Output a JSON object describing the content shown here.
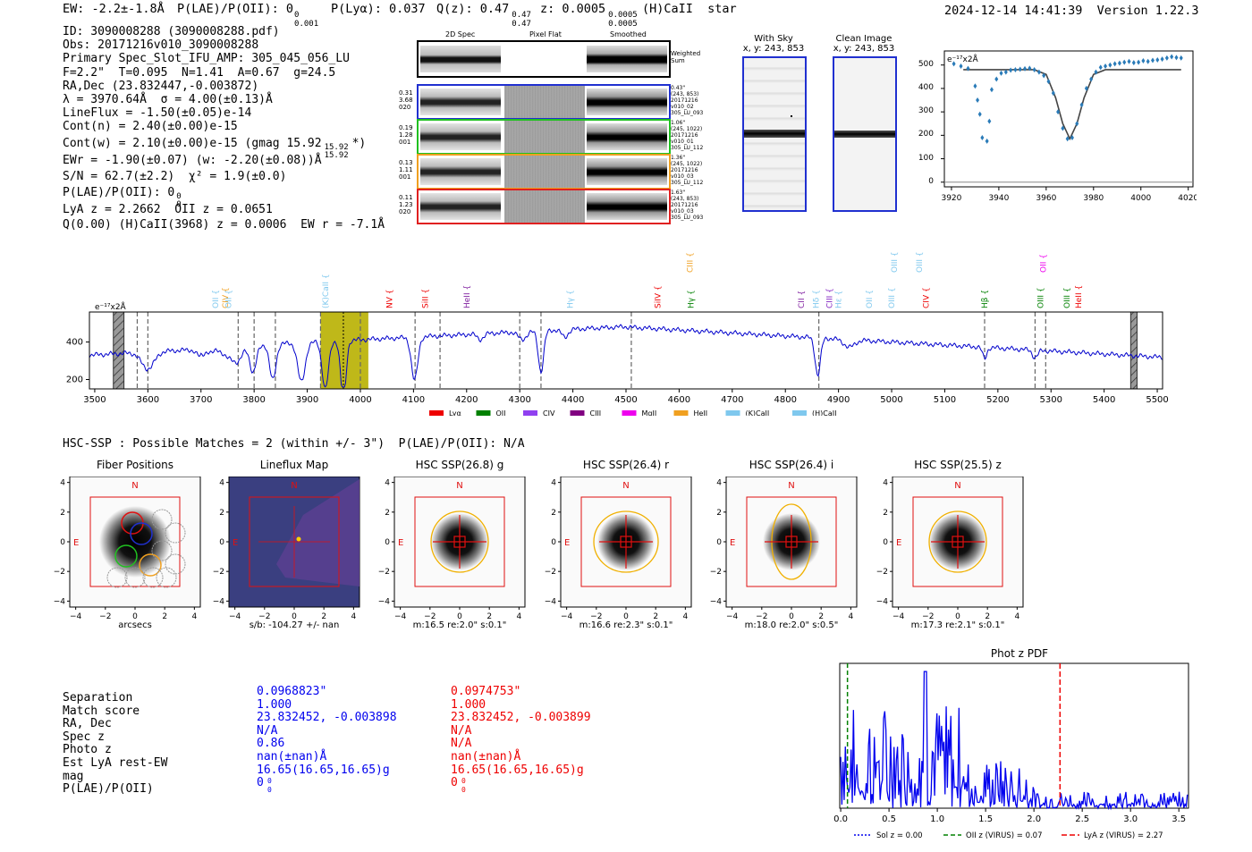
{
  "header": {
    "ew": "EW: -2.2±-1.8Å",
    "plae_label": "P(LAE)/P(OII): 0",
    "plae_sup": "0",
    "plae_sub": "0.001",
    "plya": "P(Lyα): 0.037",
    "qz_label": "Q(z): 0.47",
    "qz_sup": "0.47",
    "qz_sub": "0.47",
    "z_label": "z: 0.0005",
    "z_sup": "0.0005",
    "z_sub": "0.0005",
    "class": "(H)CaII  star",
    "timestamp": "2024-12-14 14:41:39  Version 1.22.3"
  },
  "info": {
    "l1": "ID: 3090008288 (3090008288.pdf)",
    "l2": "Obs: 20171216v010_3090008288",
    "l3": "Primary Spec_Slot_IFU_AMP: 305_045_056_LU",
    "l4": "F=2.2\"  T=0.095  N=1.41  A=0.67  g=24.5",
    "l5": "RA,Dec (23.832447,-0.003872)",
    "l6": "λ = 3970.64Å  σ = 4.00(±0.13)Å",
    "l7": "LineFlux = -1.50(±0.05)e-14",
    "l8": "Cont(n) = 2.40(±0.00)e-15",
    "l9": "Cont(w) = 2.10(±0.00)e-15 (gmag 15.92",
    "l9_sup": "15.92",
    "l9_sub": "15.92",
    "l9_end": "*)",
    "l10": "EWr = -1.90(±0.07) (w: -2.20(±0.08))Å",
    "l11": "S/N = 62.7(±2.2)  χ² = 1.9(±0.0)",
    "l12": "P(LAE)/P(OII): 0",
    "l12_sup": "0",
    "l12_sub": "0",
    "l13": "LyA z = 2.2662  OII z = 0.0651",
    "l14": "Q(0.00) (H)CaII(3968) z = 0.0006  EW r = -7.1Å"
  },
  "cutouts": {
    "col_2d": "2D Spec",
    "col_flat": "Pixel Flat",
    "col_smooth": "Smoothed",
    "weighted": "Weighted Sum",
    "rows": [
      {
        "left": [
          "0.31",
          "3.68",
          "020"
        ],
        "right": [
          "0.43\"",
          "(243, 853)",
          "20171216",
          "v010_02",
          "305_LU_093"
        ],
        "color": "#2030d0"
      },
      {
        "left": [
          "0.19",
          "1.28",
          "001"
        ],
        "right": [
          "1.06\"",
          "(245, 1022)",
          "20171216",
          "v010_01",
          "305_LU_112"
        ],
        "color": "#20c020"
      },
      {
        "left": [
          "0.13",
          "1.11",
          "001"
        ],
        "right": [
          "1.36\"",
          "(245, 1022)",
          "20171216",
          "v010_03",
          "305_LU_112"
        ],
        "color": "#f0a020"
      },
      {
        "left": [
          "0.11",
          "1.23",
          "020"
        ],
        "right": [
          "1.63\"",
          "(243, 853)",
          "20171216",
          "v010_03",
          "305_LU_093"
        ],
        "color": "#e02020"
      }
    ]
  },
  "sky": {
    "with_sky_title": "With Sky",
    "with_sky_coords": "x, y: 243, 853",
    "clean_title": "Clean Image",
    "clean_coords": "x, y: 243, 853"
  },
  "zoom_chart": {
    "type": "line",
    "unit": "e⁻¹⁷x2Å",
    "xticks": [
      3920,
      3940,
      3960,
      3980,
      4000,
      4020
    ],
    "yticks": [
      0,
      100,
      200,
      300,
      400,
      500
    ],
    "xlim": [
      3917,
      4022
    ],
    "ylim": [
      -20,
      560
    ],
    "points": [
      [
        3921,
        505
      ],
      [
        3924,
        495
      ],
      [
        3927,
        485
      ],
      [
        3930,
        410
      ],
      [
        3931,
        350
      ],
      [
        3932,
        290
      ],
      [
        3933,
        190
      ],
      [
        3935,
        175
      ],
      [
        3936,
        260
      ],
      [
        3937,
        395
      ],
      [
        3939,
        440
      ],
      [
        3941,
        465
      ],
      [
        3943,
        470
      ],
      [
        3945,
        478
      ],
      [
        3947,
        480
      ],
      [
        3949,
        482
      ],
      [
        3951,
        484
      ],
      [
        3953,
        486
      ],
      [
        3955,
        480
      ],
      [
        3957,
        470
      ],
      [
        3959,
        455
      ],
      [
        3961,
        430
      ],
      [
        3963,
        380
      ],
      [
        3965,
        300
      ],
      [
        3967,
        230
      ],
      [
        3969,
        185
      ],
      [
        3971,
        190
      ],
      [
        3973,
        250
      ],
      [
        3975,
        330
      ],
      [
        3977,
        400
      ],
      [
        3979,
        440
      ],
      [
        3981,
        470
      ],
      [
        3983,
        490
      ],
      [
        3985,
        495
      ],
      [
        3987,
        500
      ],
      [
        3989,
        505
      ],
      [
        3991,
        508
      ],
      [
        3993,
        512
      ],
      [
        3995,
        515
      ],
      [
        3997,
        510
      ],
      [
        3999,
        512
      ],
      [
        4001,
        518
      ],
      [
        4003,
        515
      ],
      [
        4005,
        520
      ],
      [
        4007,
        522
      ],
      [
        4009,
        525
      ],
      [
        4011,
        530
      ],
      [
        4013,
        535
      ],
      [
        4015,
        532
      ],
      [
        4017,
        530
      ]
    ],
    "fit": [
      [
        3925,
        480
      ],
      [
        3955,
        480
      ],
      [
        3960,
        460
      ],
      [
        3964,
        360
      ],
      [
        3967,
        250
      ],
      [
        3970,
        185
      ],
      [
        3973,
        250
      ],
      [
        3976,
        360
      ],
      [
        3980,
        460
      ],
      [
        3985,
        480
      ],
      [
        4017,
        480
      ]
    ]
  },
  "full_spec": {
    "type": "line",
    "unit": "e⁻¹⁷x2Å",
    "xticks": [
      3500,
      3600,
      3700,
      3800,
      3900,
      4000,
      4100,
      4200,
      4300,
      4400,
      4500,
      4600,
      4700,
      4800,
      4900,
      5000,
      5100,
      5200,
      5300,
      5400,
      5500
    ],
    "yticks": [
      200,
      400
    ],
    "xlim": [
      3490,
      5510
    ],
    "ylim": [
      150,
      560
    ],
    "dashes": [
      3580,
      3600,
      3770,
      3800,
      3840,
      3925,
      4000,
      4103,
      4150,
      4300,
      4340,
      4510,
      4863,
      5175,
      5270,
      5290
    ],
    "lines": [
      {
        "label": "OII",
        "x": 3727,
        "color": "#7fc8ee"
      },
      {
        "label": "CIV",
        "x": 3746,
        "color": "#f0a020"
      },
      {
        "label": "OII",
        "x": 3752,
        "color": "#7fc8ee"
      },
      {
        "label": "(K)CaII",
        "x": 3934,
        "color": "#7fc8ee"
      },
      {
        "label": "NV",
        "x": 4055,
        "color": "#ee0000"
      },
      {
        "label": "SiII",
        "x": 4122,
        "color": "#ee0000"
      },
      {
        "label": "HeII",
        "x": 4200,
        "color": "#8020a0"
      },
      {
        "label": "Hγ",
        "x": 4395,
        "color": "#7fc8ee"
      },
      {
        "label": "SiIV",
        "x": 4560,
        "color": "#ee0000"
      },
      {
        "label": "Hγ",
        "x": 4622,
        "color": "#008000"
      },
      {
        "label": "CIII",
        "x": 4620,
        "color": "#f0a020",
        "high": true
      },
      {
        "label": "CII",
        "x": 4830,
        "color": "#8020a0"
      },
      {
        "label": "Hδ",
        "x": 4858,
        "color": "#7fc8ee"
      },
      {
        "label": "CIII",
        "x": 4883,
        "color": "#8020c0"
      },
      {
        "label": "Hε",
        "x": 4900,
        "color": "#7fc8ee"
      },
      {
        "label": "OII",
        "x": 4958,
        "color": "#7fc8ee"
      },
      {
        "label": "OIII",
        "x": 5000,
        "color": "#7fc8ee"
      },
      {
        "label": "OIII",
        "x": 5005,
        "color": "#7fc8ee",
        "high": true
      },
      {
        "label": "OIII",
        "x": 5052,
        "color": "#7fc8ee",
        "high": true
      },
      {
        "label": "CIV",
        "x": 5065,
        "color": "#ee0000"
      },
      {
        "label": "Hβ",
        "x": 5175,
        "color": "#008000"
      },
      {
        "label": "OIII",
        "x": 5280,
        "color": "#008000"
      },
      {
        "label": "OII",
        "x": 5285,
        "color": "#ee00ee",
        "high": true
      },
      {
        "label": "OIII",
        "x": 5330,
        "color": "#008000"
      },
      {
        "label": "HeII",
        "x": 5352,
        "color": "#ee0000"
      }
    ],
    "legend": [
      {
        "label": "Lyα",
        "color": "#ee0000"
      },
      {
        "label": "OII",
        "color": "#008000"
      },
      {
        "label": "CIV",
        "color": "#9040f0"
      },
      {
        "label": "CIII",
        "color": "#800080"
      },
      {
        "label": "MgII",
        "color": "#ee00ee"
      },
      {
        "label": "HeII",
        "color": "#f0a020"
      },
      {
        "label": "(K)CaII",
        "color": "#7fc8ee"
      },
      {
        "label": "(H)CaII",
        "color": "#7fc8ee"
      }
    ]
  },
  "hsc": {
    "heading": "HSC-SSP : Possible Matches = 2 (within +/- 3\")  P(LAE)/P(OII): N/A",
    "panels": [
      {
        "title": "Fiber Positions",
        "caption": "arcsecs"
      },
      {
        "title": "Lineflux Map",
        "caption": "s/b: -104.27 +/- nan"
      },
      {
        "title": "HSC SSP(26.8) g",
        "caption": "m:16.5  re:2.0\"  s:0.1\""
      },
      {
        "title": "HSC SSP(26.4) r",
        "caption": "m:16.6  re:2.3\"  s:0.1\""
      },
      {
        "title": "HSC SSP(26.4) i",
        "caption": "m:18.0  re:2.0\"  s:0.5\""
      },
      {
        "title": "HSC SSP(25.5) z",
        "caption": "m:17.3  re:2.1\"  s:0.1\""
      }
    ],
    "ticks": [
      "4",
      "2",
      "0",
      "−2",
      "−4"
    ],
    "xticks": [
      "−4",
      "−2",
      "0",
      "2",
      "4"
    ],
    "north": "N",
    "east": "E"
  },
  "matches": {
    "labels": [
      "Separation",
      "Match score",
      "RA, Dec",
      "Spec z",
      "Photo z",
      "Est LyA rest-EW",
      "mag",
      "P(LAE)/P(OII)"
    ],
    "m1": [
      "0.0968823\"",
      "1.000",
      "23.832452, -0.003898",
      "N/A",
      "0.86",
      "nan(±nan)Å",
      "16.65(16.65,16.65)g",
      "0"
    ],
    "m2": [
      "0.0974753\"",
      "1.000",
      "23.832452, -0.003899",
      "N/A",
      "N/A",
      "nan(±nan)Å",
      "16.65(16.65,16.65)g",
      "0"
    ],
    "plae_sup": "0",
    "plae_sub": "0"
  },
  "photz": {
    "type": "line",
    "title": "Phot z PDF",
    "xticks": [
      0.0,
      0.5,
      1.0,
      1.5,
      2.0,
      2.5,
      3.0,
      3.5
    ],
    "xlim": [
      -0.01,
      3.6
    ],
    "sol": "Sol z = 0.00",
    "oii": "OII z (VIRUS) = 0.07",
    "lya": "LyA z (VIRUS) = 2.27",
    "oii_x": 0.07,
    "lya_x": 2.27
  }
}
